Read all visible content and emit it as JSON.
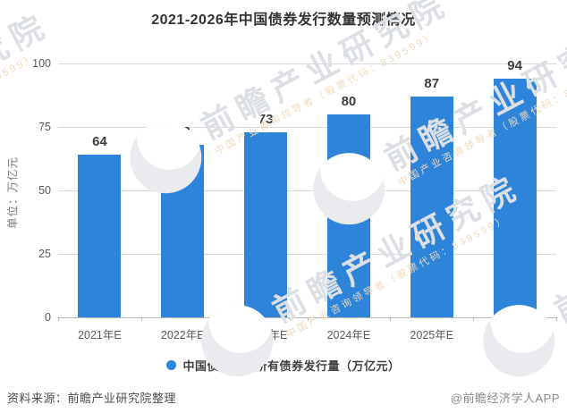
{
  "page": {
    "title": "2021-2026年中国债券发行数量预测情况",
    "source_note": "资料来源：前瞻产业研究院整理",
    "credit": "@前瞻经济学人APP"
  },
  "chart_data": {
    "type": "bar",
    "title": "2021-2026年中国债券发行数量预测情况",
    "categories": [
      "2021年E",
      "2022年E",
      "2023年E",
      "2024年E",
      "2025年E",
      "2026年E"
    ],
    "values": [
      64,
      68,
      73,
      80,
      87,
      94
    ],
    "xlabel": "",
    "ylabel": "单位：万亿元",
    "ylim": [
      0,
      100
    ],
    "yticks": [
      0,
      25,
      50,
      75,
      100
    ],
    "grid": true,
    "legend": [
      "中国债券市场所有债券发行量（万亿元）"
    ],
    "legend_position": "bottom",
    "colors": {
      "bar": "#2d84d9",
      "value_label": "#3f3f3f",
      "gridline": "#d9d9d9",
      "tick_label": "#595959",
      "title": "#333333"
    }
  },
  "watermark": {
    "brand_large": "前瞻产业研究院",
    "brand_small": "中国产业咨询领导者（股票代码：839599）"
  }
}
